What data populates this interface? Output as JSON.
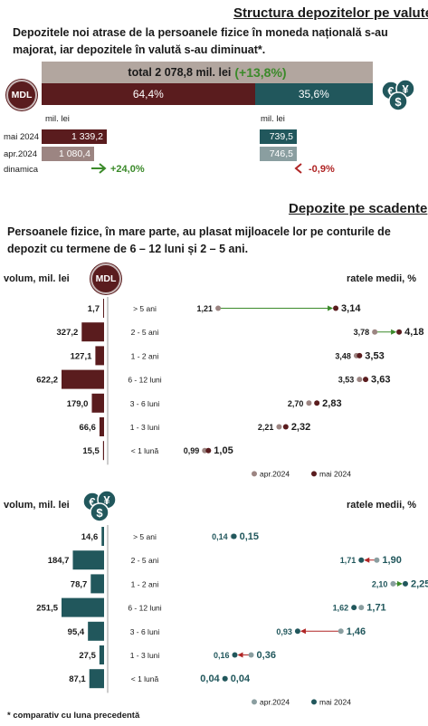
{
  "section1": {
    "title": "Structura depozitelor pe valute",
    "description": "Depozitele noi atrase de la persoanele fizice în moneda națională s-au majorat, iar depozitele în valută s-au diminuat*.",
    "total_label": "total 2 078,8 mil. lei",
    "total_change": "(+13,8%)",
    "mdl_badge": "MDL",
    "fx_icon": "currency-exchange-icon",
    "share_mdl": "64,4%",
    "share_fx": "35,6%",
    "share_mdl_value": 64.4,
    "unit_left": "mil. lei",
    "unit_right": "mil. lei",
    "rows": [
      {
        "label": "mai 2024",
        "mdl": "1 339,2",
        "fx": "739,5"
      },
      {
        "label": "apr.2024",
        "mdl": "1 080,4",
        "fx": "746,5"
      }
    ],
    "dynamics_label": "dinamica",
    "dynamics_mdl": "+24,0%",
    "dynamics_fx": "-0,9%",
    "colors": {
      "mdl": "#5a1c1e",
      "mdl_prev": "#9c8582",
      "fx": "#21575c",
      "fx_prev": "#8a9ea0",
      "total": "#b2a69f",
      "up": "#3b8a2a",
      "down": "#b02525"
    }
  },
  "section2": {
    "title": "Depozite pe scadente",
    "description": "Persoanele fizice, în mare parte, au plasat mijloacele lor pe conturile de depozit cu termene de 6 – 12 luni și 2 – 5 ani."
  },
  "chart_data": [
    {
      "type": "bar",
      "title": "",
      "currency": "MDL",
      "xlabel": "volum, mil. lei",
      "categories": [
        "> 5 ani",
        "2 - 5 ani",
        "1 - 2 ani",
        "6 - 12 luni",
        "3 - 6 luni",
        "1 - 3 luni",
        "< 1 lună"
      ],
      "values": [
        1.7,
        327.2,
        127.1,
        622.2,
        179.0,
        66.6,
        15.5
      ],
      "value_labels": [
        "1,7",
        "327,2",
        "127,1",
        "622,2",
        "179,0",
        "66,6",
        "15,5"
      ],
      "xlim": [
        0,
        622.2
      ],
      "bar_color": "#5a1c1e"
    },
    {
      "type": "scatter",
      "title": "",
      "currency": "MDL",
      "ylabel": "ratele medii, %",
      "categories": [
        "> 5 ani",
        "2 - 5 ani",
        "1 - 2 ani",
        "6 - 12 luni",
        "3 - 6 luni",
        "1 - 3 luni",
        "< 1 lună"
      ],
      "series": [
        {
          "name": "apr.2024",
          "values": [
            1.21,
            3.78,
            3.48,
            3.53,
            2.7,
            2.21,
            0.99
          ],
          "labels": [
            "1,21",
            "3,78",
            "3,48",
            "3,53",
            "2,70",
            "2,21",
            "0,99"
          ],
          "color": "#9c8582"
        },
        {
          "name": "mai 2024",
          "values": [
            3.14,
            4.18,
            3.53,
            3.63,
            2.83,
            2.32,
            1.05
          ],
          "labels": [
            "3,14",
            "4,18",
            "3,53",
            "3,63",
            "2,83",
            "2,32",
            "1,05"
          ],
          "color": "#5a1c1e"
        }
      ],
      "xlim": [
        0.6,
        4.55
      ],
      "legend": "bottom"
    },
    {
      "type": "bar",
      "title": "",
      "currency": "FX",
      "xlabel": "volum, mil. lei",
      "categories": [
        "> 5 ani",
        "2 - 5 ani",
        "1 - 2 ani",
        "6 - 12 luni",
        "3 - 6 luni",
        "1 - 3 luni",
        "< 1 lună"
      ],
      "values": [
        14.6,
        184.7,
        78.7,
        251.5,
        95.4,
        27.5,
        87.1
      ],
      "value_labels": [
        "14,6",
        "184,7",
        "78,7",
        "251,5",
        "95,4",
        "27,5",
        "87,1"
      ],
      "xlim": [
        0,
        251.5
      ],
      "bar_color": "#21575c"
    },
    {
      "type": "scatter",
      "title": "",
      "currency": "FX",
      "ylabel": "ratele medii, %",
      "categories": [
        "> 5 ani",
        "2 - 5 ani",
        "1 - 2 ani",
        "6 - 12 luni",
        "3 - 6 luni",
        "1 - 3 luni",
        "< 1 lună"
      ],
      "series": [
        {
          "name": "apr.2024",
          "values": [
            0.14,
            1.9,
            2.1,
            1.71,
            1.46,
            0.36,
            0.04
          ],
          "labels": [
            "0,14",
            "1,90",
            "2,10",
            "1,71",
            "1,46",
            "0,36",
            "0,04"
          ],
          "color": "#8a9ea0"
        },
        {
          "name": "mai 2024",
          "values": [
            0.15,
            1.71,
            2.25,
            1.62,
            0.93,
            0.16,
            0.04
          ],
          "labels": [
            "0,15",
            "1,71",
            "2,25",
            "1,62",
            "0,93",
            "0,16",
            "0,04"
          ],
          "color": "#21575c"
        }
      ],
      "xlim": [
        -0.5,
        2.45
      ],
      "legend": "bottom"
    }
  ],
  "footnote": "* comparativ cu luna precedentă"
}
